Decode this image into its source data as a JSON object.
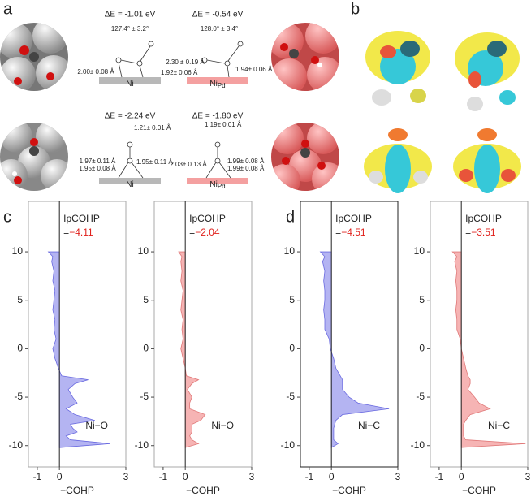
{
  "panel_labels": [
    "a",
    "b",
    "c",
    "d"
  ],
  "panel_a": {
    "energies": [
      "ΔE = -1.01 eV",
      "ΔE = -0.54 eV",
      "ΔE = -2.24 eV",
      "ΔE = -1.80 eV"
    ],
    "substrates": [
      {
        "main": "Ni"
      },
      {
        "main": "Ni",
        "sub": "Pd"
      },
      {
        "main": "Ni"
      },
      {
        "main": "Ni",
        "sub": "Pd"
      }
    ],
    "annotations": [
      "127.4° ± 3.2°",
      "2.00± 0.08 Å",
      "1.92± 0.06 Å",
      "128.0° ± 3.4°",
      "2.30 ± 0.19 Å",
      "1.94± 0.06 Å",
      "1.21± 0.01 Å",
      "1.97± 0.11 Å",
      "1.95± 0.08 Å",
      "1.95± 0.11 Å",
      "1.19± 0.01 Å",
      "2.03± 0.13 Å",
      "1.99± 0.08 Å",
      "1.99± 0.08 Å"
    ]
  },
  "chart_data": [
    {
      "type": "area",
      "xlabel": "−COHP",
      "xlim": [
        -1.4,
        3
      ],
      "xticks": [
        -1,
        0,
        3
      ],
      "ylim": [
        -12.2,
        15.2
      ],
      "yticks": [
        10,
        5,
        0,
        -5,
        -10
      ],
      "annotation_title": "IpCOHP",
      "annotation_prefix": "=",
      "annotation_value": "−4.11",
      "annotation_color": "#e0201b",
      "bond_label": "Ni−O",
      "color": "#6a6ae0",
      "fill": "#b4b4f2",
      "frame_color": "#aaaaaa",
      "energy": [
        10,
        9.5,
        9,
        8,
        7,
        6,
        5,
        4,
        3,
        2,
        1,
        0,
        -1,
        -2,
        -2.8,
        -3.2,
        -3.6,
        -4.2,
        -5,
        -5.6,
        -6.2,
        -6.8,
        -7.4,
        -7.8,
        -8.2,
        -8.6,
        -9,
        -9.4,
        -9.8,
        -10.2
      ],
      "values": [
        -0.5,
        -0.3,
        -0.35,
        -0.25,
        -0.3,
        -0.2,
        -0.25,
        -0.3,
        -0.2,
        -0.25,
        -0.15,
        -0.3,
        -0.2,
        -0.05,
        0.1,
        1.3,
        0.7,
        0.4,
        0.6,
        0.8,
        0.3,
        0.7,
        1.6,
        0.5,
        0.6,
        0.8,
        0.3,
        0.5,
        2.3,
        0
      ]
    },
    {
      "type": "area",
      "xlabel": "−COHP",
      "xlim": [
        -1.4,
        3
      ],
      "xticks": [
        -1,
        0,
        3
      ],
      "ylim": [
        -12.2,
        15.2
      ],
      "yticks": [
        10,
        5,
        0,
        -5,
        -10
      ],
      "annotation_title": "IpCOHP",
      "annotation_prefix": "=",
      "annotation_value": "−2.04",
      "annotation_color": "#e0201b",
      "bond_label": "Ni−O",
      "color": "#e07878",
      "fill": "#f6b4b4",
      "frame_color": "#aaaaaa",
      "energy": [
        10,
        9.5,
        9,
        8,
        7,
        6,
        5,
        4,
        3,
        2,
        1,
        0,
        -1,
        -2,
        -2.8,
        -3.2,
        -3.6,
        -4.2,
        -5,
        -5.6,
        -6.2,
        -6.8,
        -7.4,
        -7.8,
        -8.2,
        -8.6,
        -9,
        -9.4,
        -9.8,
        -10.2
      ],
      "values": [
        -0.3,
        -0.15,
        -0.2,
        -0.15,
        -0.2,
        -0.1,
        -0.15,
        -0.2,
        -0.1,
        -0.15,
        -0.1,
        -0.2,
        -0.1,
        0,
        0.05,
        0.6,
        0.3,
        0.1,
        0.3,
        0.2,
        0.2,
        0.9,
        0.7,
        0.3,
        0.3,
        0.3,
        0.2,
        0.3,
        0.6,
        0
      ]
    },
    {
      "type": "area",
      "xlabel": "−COHP",
      "xlim": [
        -1.4,
        3
      ],
      "xticks": [
        -1,
        0,
        3
      ],
      "ylim": [
        -12.2,
        15.2
      ],
      "yticks": [
        10,
        5,
        0,
        -5,
        -10
      ],
      "annotation_title": "IpCOHP",
      "annotation_prefix": "=",
      "annotation_value": "−4.51",
      "annotation_color": "#e0201b",
      "bond_label": "Ni−C",
      "color": "#6a6ae0",
      "fill": "#b4b4f2",
      "frame_color": "#222222",
      "energy": [
        10,
        9.5,
        9,
        8,
        7,
        6,
        5,
        4,
        3,
        2,
        1,
        0,
        -1,
        -2,
        -2.8,
        -3.2,
        -3.6,
        -4.2,
        -5,
        -5.6,
        -6.2,
        -6.8,
        -7.4,
        -7.8,
        -8.2,
        -8.6,
        -9,
        -9.4,
        -9.8,
        -10.2
      ],
      "values": [
        -0.5,
        -0.3,
        -0.4,
        -0.3,
        -0.35,
        -0.3,
        -0.3,
        -0.35,
        -0.3,
        -0.3,
        -0.1,
        -0.05,
        0.1,
        0.2,
        0.4,
        0.5,
        0.5,
        0.5,
        0.8,
        1.2,
        2.6,
        0.5,
        0.2,
        0.15,
        0.1,
        0.1,
        0.1,
        0.1,
        0.3,
        0
      ]
    },
    {
      "type": "area",
      "xlabel": "−COHP",
      "xlim": [
        -1.4,
        3
      ],
      "xticks": [
        -1,
        0,
        3
      ],
      "ylim": [
        -12.2,
        15.2
      ],
      "yticks": [
        10,
        5,
        0,
        -5,
        -10
      ],
      "annotation_title": "IpCOHP",
      "annotation_prefix": "=",
      "annotation_value": "−3.51",
      "annotation_color": "#e0201b",
      "bond_label": "Ni−C",
      "color": "#e07878",
      "fill": "#f6b4b4",
      "frame_color": "#aaaaaa",
      "energy": [
        10,
        9.5,
        9,
        8,
        7,
        6,
        5,
        4,
        3,
        2,
        1,
        0,
        -1,
        -2,
        -2.8,
        -3.2,
        -3.6,
        -4.2,
        -5,
        -5.6,
        -6.2,
        -6.8,
        -7.4,
        -7.8,
        -8.2,
        -8.6,
        -9,
        -9.4,
        -9.8,
        -10.2
      ],
      "values": [
        -0.4,
        -0.2,
        -0.3,
        -0.2,
        -0.25,
        -0.2,
        -0.2,
        -0.25,
        -0.2,
        -0.2,
        -0.05,
        0,
        0.1,
        0.2,
        0.3,
        0.4,
        0.4,
        0.3,
        0.6,
        0.8,
        1.3,
        0.4,
        0.2,
        0.1,
        0.1,
        0.1,
        0.1,
        0.2,
        2.9,
        0
      ]
    }
  ]
}
